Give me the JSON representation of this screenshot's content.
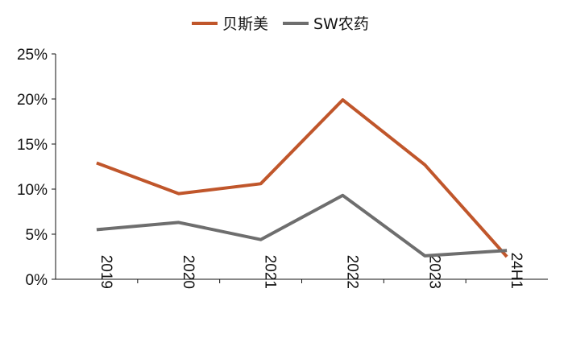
{
  "chart_data": {
    "type": "line",
    "categories": [
      "2019",
      "2020",
      "2021",
      "2022",
      "2023",
      "24H1"
    ],
    "series": [
      {
        "name": "贝斯美",
        "color": "#C0562B",
        "values": [
          12.9,
          9.5,
          10.6,
          19.9,
          12.7,
          2.5
        ]
      },
      {
        "name": "SW农药",
        "color": "#6E6E6E",
        "values": [
          5.5,
          6.3,
          4.4,
          9.3,
          2.6,
          3.2
        ]
      }
    ],
    "y_ticks": [
      "0%",
      "5%",
      "10%",
      "15%",
      "20%",
      "25%"
    ],
    "ylim": [
      0,
      25
    ],
    "grid": false,
    "legend_position": "top-center",
    "title": "",
    "xlabel": "",
    "ylabel": ""
  }
}
